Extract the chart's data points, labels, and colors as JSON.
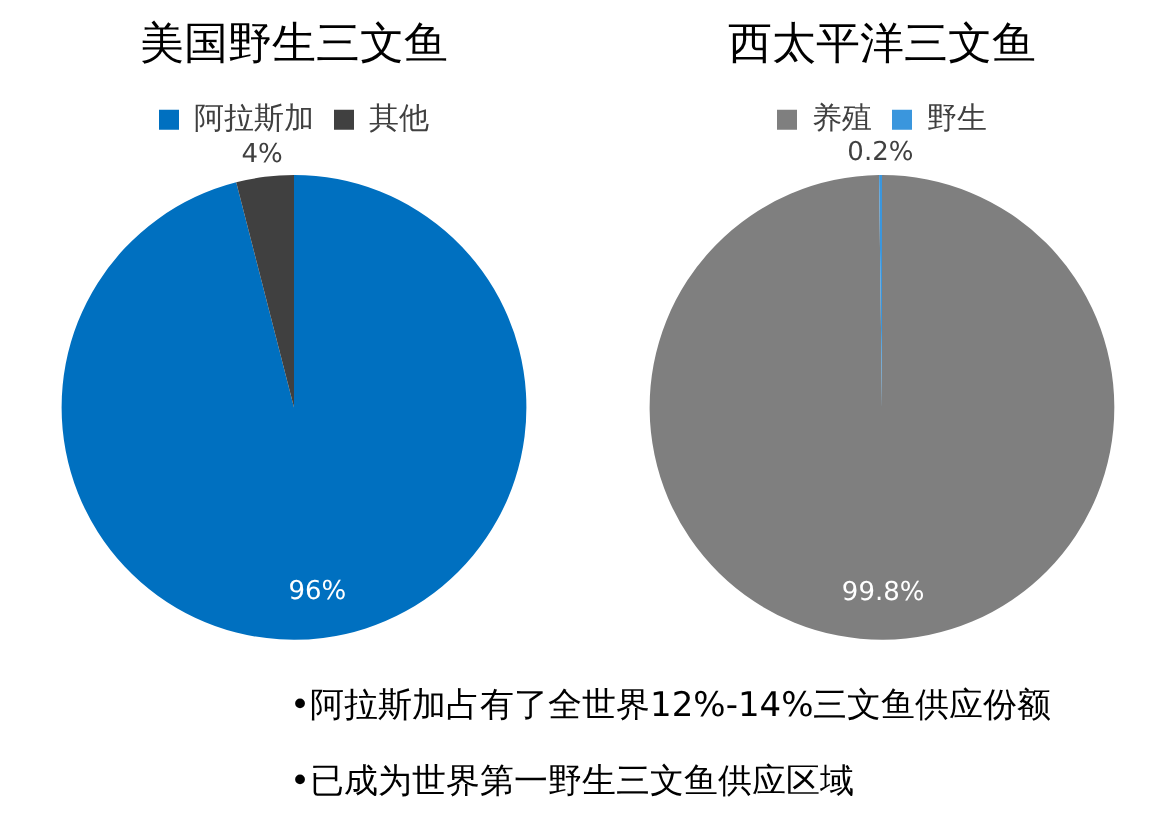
{
  "chart_data": [
    {
      "type": "pie",
      "title": "美国野生三文鱼",
      "categories": [
        "阿拉斯加",
        "其他"
      ],
      "values": [
        96,
        4
      ],
      "value_labels": [
        "96%",
        "4%"
      ],
      "colors": [
        "#0070c0",
        "#404040"
      ],
      "legend": "top"
    },
    {
      "type": "pie",
      "title": "西太平洋三文鱼",
      "categories": [
        "养殖",
        "野生"
      ],
      "values": [
        99.8,
        0.2
      ],
      "value_labels": [
        "99.8%",
        "0.2%"
      ],
      "colors": [
        "#7f7f7f",
        "#3a96dd"
      ],
      "legend": "top"
    },
    {
      "type": "other",
      "annotations": [
        "•阿拉斯加占有了全世界12%-14%三文鱼供应份额",
        "•已成为世界第一野生三文鱼供应区域"
      ]
    }
  ]
}
